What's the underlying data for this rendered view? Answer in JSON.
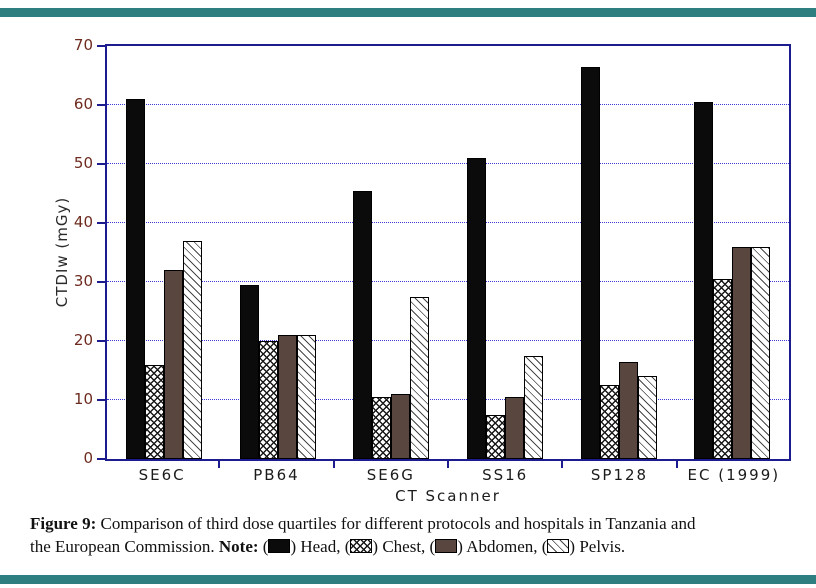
{
  "chart_data": {
    "type": "bar",
    "title": "",
    "xlabel": "CT Scanner",
    "ylabel": "CTDIw (mGy)",
    "ylim": [
      0,
      70
    ],
    "yticks": [
      0,
      10,
      20,
      30,
      40,
      50,
      60,
      70
    ],
    "grid": "horizontal-dotted",
    "legend_position": "in-caption",
    "categories": [
      "SE6C",
      "PB64",
      "SE6G",
      "SS16",
      "SP128",
      "EC (1999)"
    ],
    "series": [
      {
        "name": "Head",
        "pattern": "solid-black",
        "values": [
          61,
          29.5,
          45.5,
          51,
          66.5,
          60.5
        ]
      },
      {
        "name": "Chest",
        "pattern": "crosshatch",
        "values": [
          16,
          20,
          10.5,
          7.5,
          12.5,
          30.5
        ]
      },
      {
        "name": "Abdomen",
        "pattern": "solid-brown",
        "values": [
          32,
          21,
          11,
          10.5,
          16.5,
          36
        ]
      },
      {
        "name": "Pelvis",
        "pattern": "diagonal-hatch",
        "values": [
          37,
          21,
          27.5,
          17.5,
          14,
          36
        ]
      }
    ]
  },
  "caption": {
    "figure_label": "Figure 9:",
    "line1_rest": "Comparison of third dose quartiles for different protocols and hospitals in Tanzania and",
    "line2_start": "the European Commission.",
    "note_label": "Note:",
    "legend": [
      {
        "name": "Head",
        "pattern": "solid-black"
      },
      {
        "name": "Chest",
        "pattern": "crosshatch"
      },
      {
        "name": "Abdomen",
        "pattern": "solid-brown"
      },
      {
        "name": "Pelvis",
        "pattern": "diagonal-hatch"
      }
    ]
  },
  "colors": {
    "frame": "#1c1c8f",
    "gridline": "#3a3ad6",
    "tick_label": "#6d2a1e",
    "separator_teal": "#2e7f80",
    "bar_head": "#0b0b0b",
    "bar_abdomen": "#59463e",
    "hatch": "#1a1a1a"
  }
}
